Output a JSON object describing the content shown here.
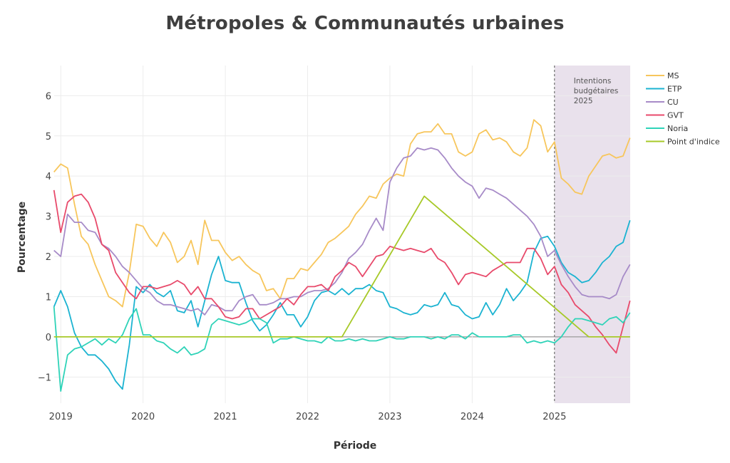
{
  "chart_data": {
    "type": "line",
    "title": "Métropoles & Communautés urbaines",
    "xlabel": "Période",
    "ylabel": "Pourcentage",
    "xlim": [
      2018.92,
      2025.92
    ],
    "ylim": [
      -1.65,
      6.75
    ],
    "yticks": [
      -1,
      0,
      1,
      2,
      3,
      4,
      5,
      6
    ],
    "xticks": [
      "2019",
      "2020",
      "2021",
      "2022",
      "2023",
      "2024",
      "2025"
    ],
    "grid": true,
    "legend_position": "right",
    "annotation": {
      "text": [
        "Intentions",
        "budgétaires",
        "2025"
      ],
      "x_start": 2025,
      "x_end": 2025.92,
      "fill": "#e9e1ec"
    },
    "x": [
      2018.917,
      2019.0,
      2019.083,
      2019.167,
      2019.25,
      2019.333,
      2019.417,
      2019.5,
      2019.583,
      2019.667,
      2019.75,
      2019.833,
      2019.917,
      2020.0,
      2020.083,
      2020.167,
      2020.25,
      2020.333,
      2020.417,
      2020.5,
      2020.583,
      2020.667,
      2020.75,
      2020.833,
      2020.917,
      2021.0,
      2021.083,
      2021.167,
      2021.25,
      2021.333,
      2021.417,
      2021.5,
      2021.583,
      2021.667,
      2021.75,
      2021.833,
      2021.917,
      2022.0,
      2022.083,
      2022.167,
      2022.25,
      2022.333,
      2022.417,
      2022.5,
      2022.583,
      2022.667,
      2022.75,
      2022.833,
      2022.917,
      2023.0,
      2023.083,
      2023.167,
      2023.25,
      2023.333,
      2023.417,
      2023.5,
      2023.583,
      2023.667,
      2023.75,
      2023.833,
      2023.917,
      2024.0,
      2024.083,
      2024.167,
      2024.25,
      2024.333,
      2024.417,
      2024.5,
      2024.583,
      2024.667,
      2024.75,
      2024.833,
      2024.917,
      2025.0,
      2025.083,
      2025.167,
      2025.25,
      2025.333,
      2025.417,
      2025.5,
      2025.583,
      2025.667,
      2025.75,
      2025.833,
      2025.917
    ],
    "series": [
      {
        "name": "MS",
        "color": "#f7c65c",
        "values": [
          4.1,
          4.3,
          4.2,
          3.3,
          2.5,
          2.3,
          1.8,
          1.4,
          1.0,
          0.9,
          0.75,
          1.6,
          2.8,
          2.75,
          2.45,
          2.25,
          2.6,
          2.35,
          1.85,
          2.0,
          2.4,
          1.8,
          2.9,
          2.4,
          2.4,
          2.1,
          1.9,
          2.0,
          1.8,
          1.65,
          1.55,
          1.15,
          1.2,
          0.95,
          1.45,
          1.45,
          1.7,
          1.65,
          1.85,
          2.05,
          2.35,
          2.45,
          2.6,
          2.75,
          3.05,
          3.25,
          3.5,
          3.45,
          3.8,
          3.95,
          4.05,
          4.0,
          4.8,
          5.05,
          5.1,
          5.1,
          5.3,
          5.05,
          5.05,
          4.6,
          4.5,
          4.6,
          5.05,
          5.15,
          4.9,
          4.95,
          4.85,
          4.6,
          4.5,
          4.7,
          5.4,
          5.25,
          4.6,
          4.85,
          3.95,
          3.8,
          3.6,
          3.55,
          4.0,
          4.25,
          4.5,
          4.55,
          4.45,
          4.5,
          4.95
        ]
      },
      {
        "name": "ETP",
        "color": "#1bb3d1",
        "values": [
          0.75,
          1.15,
          0.75,
          0.1,
          -0.25,
          -0.45,
          -0.45,
          -0.6,
          -0.8,
          -1.1,
          -1.3,
          -0.2,
          1.25,
          1.1,
          1.3,
          1.1,
          1.0,
          1.15,
          0.65,
          0.6,
          0.9,
          0.25,
          0.9,
          1.55,
          2.0,
          1.4,
          1.35,
          1.35,
          0.85,
          0.4,
          0.15,
          0.3,
          0.55,
          0.85,
          0.55,
          0.55,
          0.25,
          0.5,
          0.9,
          1.1,
          1.15,
          1.05,
          1.2,
          1.05,
          1.2,
          1.2,
          1.3,
          1.15,
          1.1,
          0.75,
          0.7,
          0.6,
          0.55,
          0.6,
          0.8,
          0.75,
          0.8,
          1.1,
          0.8,
          0.75,
          0.55,
          0.45,
          0.5,
          0.85,
          0.55,
          0.8,
          1.2,
          0.9,
          1.1,
          1.35,
          2.1,
          2.45,
          2.5,
          2.25,
          1.85,
          1.6,
          1.5,
          1.35,
          1.4,
          1.6,
          1.85,
          2.0,
          2.25,
          2.35,
          2.9
        ]
      },
      {
        "name": "CU",
        "color": "#a78bc8",
        "values": [
          2.15,
          2.0,
          3.05,
          2.85,
          2.85,
          2.65,
          2.6,
          2.3,
          2.2,
          2.0,
          1.75,
          1.6,
          1.4,
          1.2,
          1.1,
          0.9,
          0.8,
          0.8,
          0.75,
          0.7,
          0.65,
          0.7,
          0.55,
          0.8,
          0.75,
          0.65,
          0.65,
          0.9,
          1.0,
          1.05,
          0.8,
          0.8,
          0.85,
          0.95,
          0.95,
          1.0,
          1.0,
          1.1,
          1.15,
          1.15,
          1.2,
          1.35,
          1.6,
          1.95,
          2.1,
          2.3,
          2.65,
          2.95,
          2.65,
          3.85,
          4.2,
          4.45,
          4.5,
          4.7,
          4.65,
          4.7,
          4.65,
          4.45,
          4.2,
          4.0,
          3.85,
          3.75,
          3.45,
          3.7,
          3.65,
          3.55,
          3.45,
          3.3,
          3.15,
          3.0,
          2.8,
          2.5,
          2.0,
          2.15,
          1.8,
          1.5,
          1.25,
          1.05,
          1.0,
          1.0,
          1.0,
          0.95,
          1.05,
          1.5,
          1.8
        ]
      },
      {
        "name": "GVT",
        "color": "#e84a6b",
        "values": [
          3.65,
          2.6,
          3.35,
          3.5,
          3.55,
          3.35,
          2.95,
          2.3,
          2.15,
          1.6,
          1.35,
          1.1,
          0.95,
          1.25,
          1.25,
          1.2,
          1.25,
          1.3,
          1.4,
          1.3,
          1.05,
          1.25,
          0.95,
          0.95,
          0.75,
          0.5,
          0.45,
          0.5,
          0.7,
          0.7,
          0.45,
          0.55,
          0.65,
          0.75,
          0.95,
          0.8,
          1.05,
          1.25,
          1.25,
          1.3,
          1.15,
          1.5,
          1.65,
          1.85,
          1.75,
          1.5,
          1.75,
          2.0,
          2.05,
          2.25,
          2.2,
          2.15,
          2.2,
          2.15,
          2.1,
          2.2,
          1.95,
          1.85,
          1.6,
          1.3,
          1.55,
          1.6,
          1.55,
          1.5,
          1.65,
          1.75,
          1.85,
          1.85,
          1.85,
          2.2,
          2.2,
          1.95,
          1.55,
          1.75,
          1.3,
          1.1,
          0.8,
          0.65,
          0.5,
          0.25,
          0.05,
          -0.2,
          -0.4,
          0.25,
          0.9
        ]
      },
      {
        "name": "Noria",
        "color": "#2fd3b8",
        "values": [
          0.75,
          -1.35,
          -0.45,
          -0.3,
          -0.25,
          -0.15,
          -0.05,
          -0.2,
          -0.05,
          -0.15,
          0.05,
          0.45,
          0.7,
          0.05,
          0.05,
          -0.1,
          -0.15,
          -0.3,
          -0.4,
          -0.25,
          -0.45,
          -0.4,
          -0.3,
          0.3,
          0.45,
          0.4,
          0.35,
          0.3,
          0.35,
          0.45,
          0.45,
          0.35,
          -0.15,
          -0.05,
          -0.05,
          0.0,
          -0.05,
          -0.1,
          -0.1,
          -0.15,
          0.0,
          -0.1,
          -0.1,
          -0.05,
          -0.1,
          -0.05,
          -0.1,
          -0.1,
          -0.05,
          0.0,
          -0.05,
          -0.05,
          0.0,
          0.0,
          0.0,
          -0.05,
          0.0,
          -0.05,
          0.05,
          0.05,
          -0.05,
          0.1,
          0.0,
          0.0,
          0.0,
          0.0,
          0.0,
          0.05,
          0.05,
          -0.15,
          -0.1,
          -0.15,
          -0.1,
          -0.15,
          0.0,
          0.25,
          0.45,
          0.45,
          0.4,
          0.35,
          0.3,
          0.45,
          0.5,
          0.35,
          0.6
        ]
      },
      {
        "name": "Point d'indice",
        "color": "#a7c928",
        "segments": [
          [
            2018.917,
            0
          ],
          [
            2022.417,
            0
          ],
          [
            2023.417,
            3.5
          ],
          [
            2025.417,
            0
          ],
          [
            2025.917,
            0
          ]
        ]
      }
    ]
  }
}
